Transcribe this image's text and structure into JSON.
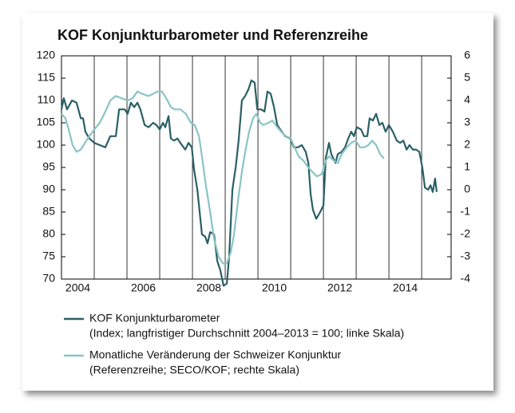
{
  "chart_data": {
    "type": "line",
    "title": "KOF Konjunkturbarometer und Referenzreihe",
    "xlim": [
      2004,
      2015.9
    ],
    "xticks": [
      {
        "value": 2004.5,
        "label": "2004"
      },
      {
        "value": 2006.5,
        "label": "2006"
      },
      {
        "value": 2008.5,
        "label": "2008"
      },
      {
        "value": 2010.5,
        "label": "2010"
      },
      {
        "value": 2012.5,
        "label": "2012"
      },
      {
        "value": 2014.5,
        "label": "2014"
      }
    ],
    "xgrid": [
      2005,
      2006,
      2007,
      2008,
      2009,
      2010,
      2011,
      2012,
      2013,
      2014,
      2015
    ],
    "ylim": [
      70,
      120
    ],
    "yticks": [
      70,
      75,
      80,
      85,
      90,
      95,
      100,
      105,
      110,
      115,
      120
    ],
    "y2lim": [
      -4,
      6
    ],
    "y2ticks": [
      -4,
      -3,
      -2,
      -1,
      0,
      1,
      2,
      3,
      4,
      5,
      6
    ],
    "grid": "x",
    "series": [
      {
        "name": "KOF Konjunkturbarometer",
        "detail": "(Index; langfristiger Durchschnitt 2004–2013 = 100; linke Skala)",
        "color": "#2a5f66",
        "axis": "y",
        "x": [
          2004.0,
          2004.07,
          2004.17,
          2004.32,
          2004.46,
          2004.59,
          2004.66,
          2004.73,
          2004.85,
          2005.0,
          2005.17,
          2005.34,
          2005.49,
          2005.66,
          2005.76,
          2005.93,
          2006.02,
          2006.12,
          2006.22,
          2006.32,
          2006.41,
          2006.54,
          2006.66,
          2006.8,
          2006.9,
          2007.0,
          2007.1,
          2007.17,
          2007.27,
          2007.34,
          2007.44,
          2007.54,
          2007.63,
          2007.78,
          2007.88,
          2007.98,
          2008.05,
          2008.15,
          2008.22,
          2008.29,
          2008.39,
          2008.46,
          2008.54,
          2008.66,
          2008.76,
          2008.85,
          2008.95,
          2009.05,
          2009.12,
          2009.22,
          2009.32,
          2009.41,
          2009.51,
          2009.61,
          2009.71,
          2009.8,
          2009.9,
          2009.98,
          2010.1,
          2010.2,
          2010.29,
          2010.39,
          2010.49,
          2010.59,
          2010.68,
          2010.83,
          2010.98,
          2011.1,
          2011.22,
          2011.34,
          2011.46,
          2011.54,
          2011.61,
          2011.68,
          2011.78,
          2011.9,
          2012.0,
          2012.07,
          2012.17,
          2012.24,
          2012.37,
          2012.44,
          2012.56,
          2012.66,
          2012.76,
          2012.85,
          2012.93,
          2013.02,
          2013.15,
          2013.24,
          2013.34,
          2013.41,
          2013.51,
          2013.61,
          2013.71,
          2013.8,
          2013.9,
          2014.0,
          2014.12,
          2014.24,
          2014.34,
          2014.44,
          2014.54,
          2014.63,
          2014.73,
          2014.83,
          2014.93,
          2015.02,
          2015.1,
          2015.2,
          2015.27,
          2015.34,
          2015.41,
          2015.46
        ],
        "values": [
          108,
          110.5,
          108,
          110,
          109.5,
          106,
          106,
          103,
          101.5,
          100.5,
          100,
          99.5,
          102,
          102,
          108,
          108,
          107,
          109.5,
          108.5,
          109.5,
          108,
          104.5,
          104,
          105,
          104.5,
          103.5,
          105,
          104,
          106.5,
          101.5,
          101,
          101.5,
          100.5,
          99,
          100.5,
          99.5,
          94.5,
          90,
          85,
          80,
          79.5,
          78,
          80.5,
          80,
          74,
          72,
          68.5,
          69,
          75,
          90,
          95,
          101,
          110,
          111,
          112.5,
          114.5,
          114,
          108,
          108,
          107.5,
          112,
          111.5,
          108.5,
          104.5,
          103.5,
          102,
          101.5,
          99.5,
          99.5,
          100,
          98.5,
          96,
          89,
          85.5,
          83.5,
          85,
          86.5,
          97,
          100.5,
          98,
          96,
          98,
          98.5,
          99.5,
          101.5,
          103,
          102,
          104,
          103.5,
          102,
          102,
          106,
          105.5,
          107,
          104.5,
          105,
          103,
          104.5,
          103,
          101,
          100.5,
          101,
          99,
          100,
          99,
          99,
          98.5,
          95,
          90.5,
          90,
          91,
          89.5,
          92.5,
          89.5
        ]
      },
      {
        "name": "Monatliche Veränderung der Schweizer Konjunktur",
        "detail": "(Referenzreihe; SECO/KOF; rechte Skala)",
        "color": "#8ac4c6",
        "axis": "y2",
        "x": [
          2004.0,
          2004.12,
          2004.22,
          2004.34,
          2004.46,
          2004.59,
          2004.76,
          2005.0,
          2005.17,
          2005.34,
          2005.49,
          2005.66,
          2005.83,
          2006.02,
          2006.17,
          2006.32,
          2006.46,
          2006.66,
          2006.8,
          2006.93,
          2007.07,
          2007.2,
          2007.34,
          2007.46,
          2007.63,
          2007.8,
          2007.95,
          2008.07,
          2008.2,
          2008.29,
          2008.41,
          2008.54,
          2008.66,
          2008.8,
          2008.93,
          2009.05,
          2009.17,
          2009.27,
          2009.39,
          2009.51,
          2009.61,
          2009.73,
          2009.85,
          2009.95,
          2010.07,
          2010.17,
          2010.32,
          2010.44,
          2010.59,
          2010.71,
          2010.85,
          2011.0,
          2011.12,
          2011.24,
          2011.39,
          2011.54,
          2011.66,
          2011.8,
          2011.95,
          2012.07,
          2012.17,
          2012.32,
          2012.44,
          2012.56,
          2012.71,
          2012.85,
          2012.98,
          2013.12,
          2013.24,
          2013.37,
          2013.49,
          2013.61,
          2013.73,
          2013.85
        ],
        "values": [
          3.4,
          3.2,
          2.7,
          2.0,
          1.7,
          1.8,
          2.2,
          2.7,
          3.0,
          3.5,
          4.0,
          4.2,
          4.1,
          4.0,
          4.1,
          4.4,
          4.3,
          4.2,
          4.3,
          4.4,
          4.4,
          4.1,
          3.7,
          3.6,
          3.6,
          3.4,
          3.0,
          2.9,
          2.4,
          1.5,
          0.2,
          -1.0,
          -2.2,
          -3.0,
          -3.3,
          -3.3,
          -2.8,
          -2.0,
          -0.5,
          0.8,
          1.7,
          2.6,
          3.2,
          3.4,
          3.0,
          2.9,
          3.0,
          3.1,
          2.8,
          2.6,
          2.4,
          2.3,
          1.9,
          1.5,
          1.3,
          1.0,
          0.8,
          0.6,
          0.7,
          1.3,
          1.5,
          1.3,
          1.2,
          1.6,
          1.9,
          2.1,
          2.2,
          1.9,
          1.9,
          2.0,
          2.2,
          2.0,
          1.6,
          1.4
        ]
      }
    ]
  }
}
